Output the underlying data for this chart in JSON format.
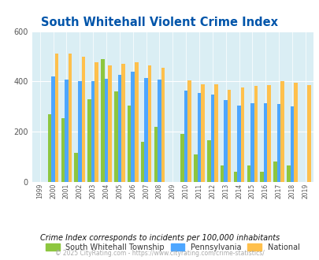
{
  "title": "South Whitehall Violent Crime Index",
  "years": [
    1999,
    2000,
    2001,
    2002,
    2003,
    2004,
    2005,
    2006,
    2007,
    2008,
    2009,
    2010,
    2011,
    2012,
    2013,
    2014,
    2015,
    2016,
    2017,
    2018,
    2019
  ],
  "south_whitehall": [
    0,
    270,
    255,
    115,
    330,
    490,
    360,
    305,
    160,
    220,
    0,
    190,
    110,
    165,
    65,
    42,
    65,
    42,
    80,
    65,
    0
  ],
  "pennsylvania": [
    0,
    420,
    408,
    400,
    400,
    410,
    425,
    440,
    415,
    408,
    0,
    365,
    355,
    348,
    325,
    305,
    315,
    313,
    310,
    302,
    0
  ],
  "national": [
    0,
    510,
    510,
    497,
    475,
    465,
    470,
    475,
    465,
    455,
    0,
    405,
    390,
    390,
    368,
    375,
    383,
    387,
    400,
    395,
    385
  ],
  "sw_color": "#8dc63f",
  "pa_color": "#4da6ff",
  "nat_color": "#ffc04c",
  "bg_color": "#daeef4",
  "ylim": [
    0,
    600
  ],
  "yticks": [
    0,
    200,
    400,
    600
  ],
  "legend_labels": [
    "South Whitehall Township",
    "Pennsylvania",
    "National"
  ],
  "footnote1": "Crime Index corresponds to incidents per 100,000 inhabitants",
  "footnote2": "© 2025 CityRating.com - https://www.cityrating.com/crime-statistics/",
  "bar_width": 0.27,
  "title_color": "#0055aa",
  "footnote1_color": "#111111",
  "footnote2_color": "#aaaaaa"
}
